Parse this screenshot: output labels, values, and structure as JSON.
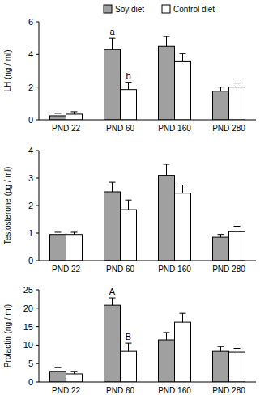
{
  "chart_data": [
    {
      "type": "bar",
      "y_label": "LH (ng / ml)",
      "categories": [
        "PND 22",
        "PND 60",
        "PND 160",
        "PND 280"
      ],
      "series": [
        {
          "name": "Soy diet",
          "color": "#a0a0a0",
          "values": [
            0.25,
            4.3,
            4.5,
            1.75
          ],
          "errors": [
            0.15,
            0.7,
            0.6,
            0.25
          ]
        },
        {
          "name": "Control diet",
          "color": "#ffffff",
          "values": [
            0.35,
            1.85,
            3.6,
            2.0
          ],
          "errors": [
            0.15,
            0.45,
            0.45,
            0.25
          ]
        }
      ],
      "annotations": [
        {
          "text": "a",
          "series": 0,
          "category": 1
        },
        {
          "text": "b",
          "series": 1,
          "category": 1
        }
      ],
      "ylim": [
        0,
        6
      ],
      "yticks": [
        0,
        2,
        4,
        6
      ],
      "grid": false,
      "legend": "top"
    },
    {
      "type": "bar",
      "y_label": "Testosterone (pg / ml)",
      "categories": [
        "PND 22",
        "PND 60",
        "PND 160",
        "PND 280"
      ],
      "series": [
        {
          "color": "#a0a0a0",
          "values": [
            0.95,
            2.5,
            3.1,
            0.85
          ],
          "errors": [
            0.08,
            0.35,
            0.4,
            0.1
          ]
        },
        {
          "color": "#ffffff",
          "values": [
            0.95,
            1.85,
            2.45,
            1.05
          ],
          "errors": [
            0.08,
            0.35,
            0.3,
            0.2
          ]
        }
      ],
      "ylim": [
        0,
        4
      ],
      "yticks": [
        0,
        1,
        2,
        3,
        4
      ],
      "grid": false
    },
    {
      "type": "bar",
      "y_label": "Prolactin (ng / ml)",
      "categories": [
        "PND 22",
        "PND 60",
        "PND 160",
        "PND 280"
      ],
      "series": [
        {
          "color": "#a0a0a0",
          "values": [
            2.9,
            20.8,
            11.4,
            8.3
          ],
          "errors": [
            1.0,
            2.0,
            2.0,
            1.3
          ]
        },
        {
          "color": "#ffffff",
          "values": [
            2.2,
            8.3,
            16.2,
            8.1
          ],
          "errors": [
            0.7,
            2.2,
            2.4,
            1.0
          ]
        }
      ],
      "annotations": [
        {
          "text": "A",
          "series": 0,
          "category": 1
        },
        {
          "text": "B",
          "series": 1,
          "category": 1
        }
      ],
      "ylim": [
        0,
        25
      ],
      "yticks": [
        0,
        5,
        10,
        15,
        20,
        25
      ],
      "grid": false
    }
  ]
}
